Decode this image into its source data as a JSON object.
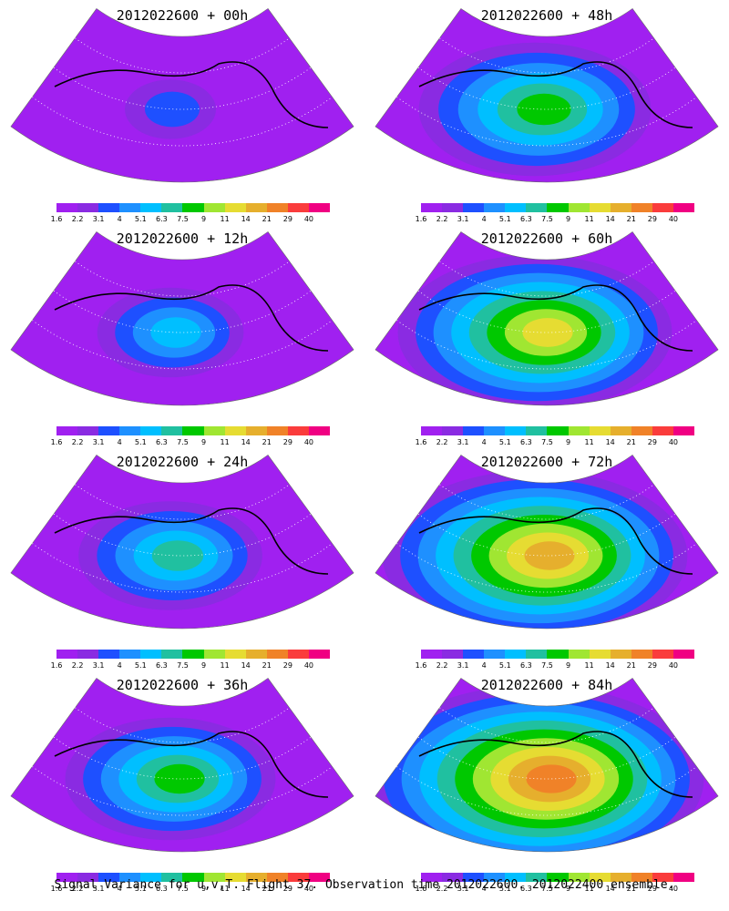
{
  "panels": [
    {
      "title": "2012022600  + 00h",
      "intensity": 0.0
    },
    {
      "title": "2012022600  + 48h",
      "intensity": 0.55
    },
    {
      "title": "2012022600  + 12h",
      "intensity": 0.2
    },
    {
      "title": "2012022600  + 60h",
      "intensity": 0.7
    },
    {
      "title": "2012022600  + 24h",
      "intensity": 0.35
    },
    {
      "title": "2012022600  + 72h",
      "intensity": 0.82
    },
    {
      "title": "2012022600  + 36h",
      "intensity": 0.45
    },
    {
      "title": "2012022600  + 84h",
      "intensity": 0.95
    }
  ],
  "colorbar": {
    "labels": [
      "1.6",
      "2.2",
      "3.1",
      "4",
      "5.1",
      "6.3",
      "7.5",
      "9",
      "11",
      "14",
      "21",
      "29",
      "40"
    ],
    "colors": [
      "#a020f0",
      "#8a2be2",
      "#1e50ff",
      "#1e90ff",
      "#00bfff",
      "#20c0a0",
      "#00c800",
      "#a0e632",
      "#e6dc32",
      "#e6af2d",
      "#f08228",
      "#fa3c3c",
      "#f00082"
    ]
  },
  "caption": "Signal Variance for u,v,T. Flight 37. Observation time 2012022600. 2012022400 ensemble."
}
